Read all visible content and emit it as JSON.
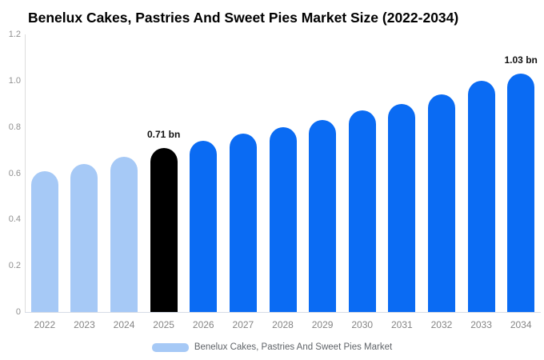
{
  "title": "Benelux Cakes, Pastries And Sweet Pies Market Size (2022-2034)",
  "legend": {
    "label": "Benelux Cakes, Pastries And Sweet Pies Market",
    "swatch_color": "#a6c9f6"
  },
  "colors": {
    "historical_bar": "#a6c9f6",
    "highlight_bar": "#000000",
    "forecast_bar": "#0a6bf3",
    "y_axis_line": "#dcdcdc",
    "x_axis_line": "#d6dce6",
    "y_tick_text": "#909090",
    "x_label_text": "#858585",
    "value_label_text": "#111111",
    "legend_text": "#5f6368",
    "title_text": "#000000"
  },
  "chart_data": {
    "type": "bar",
    "title": "Benelux Cakes, Pastries And Sweet Pies Market Size (2022-2034)",
    "xlabel": "",
    "ylabel": "",
    "categories": [
      "2022",
      "2023",
      "2024",
      "2025",
      "2026",
      "2027",
      "2028",
      "2029",
      "2030",
      "2031",
      "2032",
      "2033",
      "2034"
    ],
    "series": [
      {
        "name": "Benelux Cakes, Pastries And Sweet Pies Market",
        "values": [
          0.61,
          0.64,
          0.67,
          0.71,
          0.74,
          0.77,
          0.8,
          0.83,
          0.87,
          0.9,
          0.94,
          1.0,
          1.03
        ]
      }
    ],
    "bar_roles": [
      "historical",
      "historical",
      "historical",
      "highlight",
      "forecast",
      "forecast",
      "forecast",
      "forecast",
      "forecast",
      "forecast",
      "forecast",
      "forecast",
      "forecast"
    ],
    "annotations": [
      {
        "category_index": 3,
        "text": "0.71 bn"
      },
      {
        "category_index": 12,
        "text": "1.03 bn"
      }
    ],
    "ylim": [
      0,
      1.2
    ],
    "yticks": [
      {
        "value": 0,
        "label": "0"
      },
      {
        "value": 0.2,
        "label": "0.2"
      },
      {
        "value": 0.4,
        "label": "0.4"
      },
      {
        "value": 0.6,
        "label": "0.6"
      },
      {
        "value": 0.8,
        "label": "0.8"
      },
      {
        "value": 1.0,
        "label": "1.0"
      },
      {
        "value": 1.2,
        "label": "1.2"
      }
    ],
    "grid": false,
    "legend_position": "bottom"
  }
}
